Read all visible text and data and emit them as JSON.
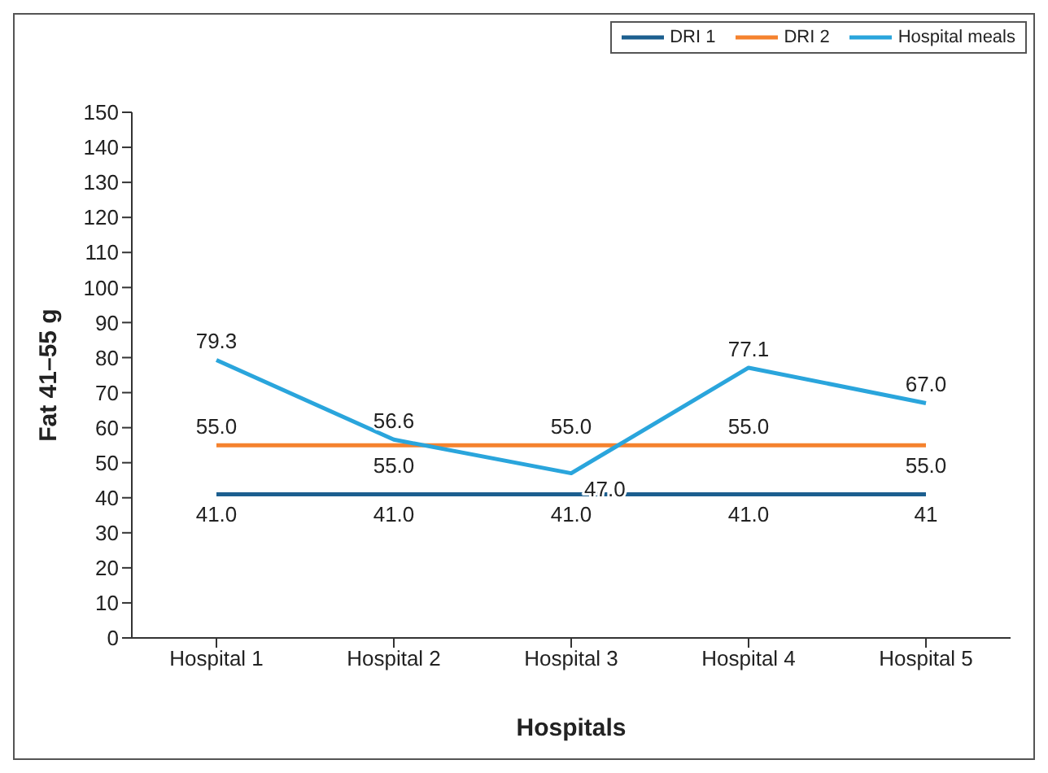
{
  "chart_data": {
    "type": "line",
    "xlabel": "Hospitals",
    "ylabel": "Fat 41–55 g",
    "categories": [
      "Hospital 1",
      "Hospital 2",
      "Hospital 3",
      "Hospital 4",
      "Hospital 5"
    ],
    "series": [
      {
        "name": "DRI 1",
        "color": "#1c5f8f",
        "values": [
          41,
          41,
          41,
          41,
          41
        ],
        "value_labels": [
          "41.0",
          "41.0",
          "41.0",
          "41.0",
          "41"
        ]
      },
      {
        "name": "DRI 2",
        "color": "#f5822e",
        "values": [
          55,
          55,
          55,
          55,
          55
        ],
        "value_labels": [
          "55.0",
          "55.0",
          "55.0",
          "55.0",
          "55.0"
        ]
      },
      {
        "name": "Hospital meals",
        "color": "#2aa5dc",
        "values": [
          79.3,
          56.6,
          47.0,
          77.1,
          67.0
        ],
        "value_labels": [
          "79.3",
          "56.6",
          "47.0",
          "77.1",
          "67.0"
        ]
      }
    ],
    "ylim": [
      0,
      150
    ],
    "yticks": [
      0,
      10,
      20,
      30,
      40,
      50,
      60,
      70,
      80,
      90,
      100,
      110,
      120,
      130,
      140,
      150
    ],
    "grid": false,
    "legend": "top right",
    "marker": "none",
    "line_style": "solid"
  }
}
